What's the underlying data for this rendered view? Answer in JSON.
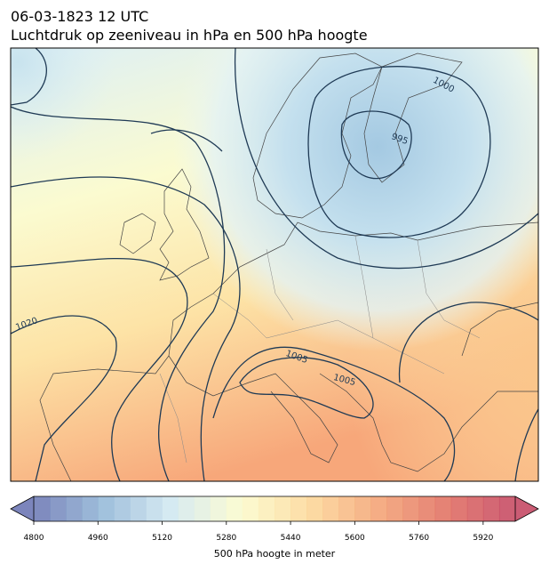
{
  "header": {
    "date": "06-03-1823 12 UTC",
    "title": "Luchtdruk op zeeniveau in hPa en 500 hPa hoogte"
  },
  "map": {
    "contour_labels": [
      "1000",
      "995",
      "1020",
      "1005",
      "1005"
    ]
  },
  "colorbar": {
    "label": "500 hPa hoogte in meter",
    "lim": [
      4800,
      6000
    ],
    "level_step": 40,
    "ticks": [
      4800,
      4960,
      5120,
      5280,
      5440,
      5600,
      5760,
      5920
    ],
    "colors": [
      "#6570b0",
      "#8fb4d6",
      "#cfe7f0",
      "#fbfbcb",
      "#fdd795",
      "#f3a070",
      "#e06a5c",
      "#c23f5c"
    ]
  }
}
